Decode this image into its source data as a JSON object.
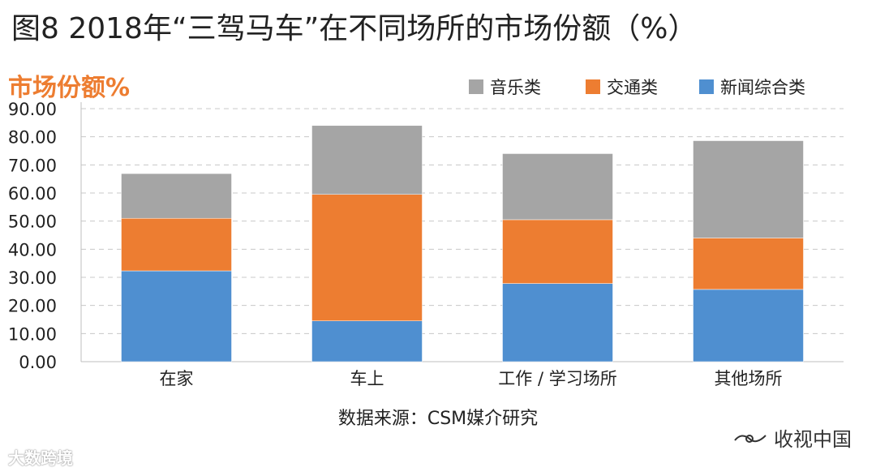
{
  "title": "图8 2018年“三驾马车”在不同场所的市场份额（%）",
  "source": "数据来源：CSM媒介研究",
  "watermark_left": "大数跨境",
  "watermark_right": "收视中国",
  "chart_data": {
    "type": "bar",
    "stacked": true,
    "ylabel": "市场份额%",
    "ylim": [
      0,
      90
    ],
    "yticks": [
      "0.00",
      "10.00",
      "20.00",
      "30.00",
      "40.00",
      "50.00",
      "60.00",
      "70.00",
      "80.00",
      "90.00"
    ],
    "grid": true,
    "legend_position": "top-right",
    "categories": [
      "在家",
      "车上",
      "工作 / 学习场所",
      "其他场所"
    ],
    "series": [
      {
        "name": "新闻综合类",
        "color": "#4f8fd0",
        "values": [
          32.3,
          14.5,
          27.8,
          25.7
        ]
      },
      {
        "name": "交通类",
        "color": "#ed7d31",
        "values": [
          18.7,
          45.0,
          22.7,
          18.3
        ]
      },
      {
        "name": "音乐类",
        "color": "#a5a5a5",
        "values": [
          15.9,
          24.5,
          23.5,
          34.6
        ]
      }
    ],
    "legend_order": [
      "音乐类",
      "交通类",
      "新闻综合类"
    ]
  }
}
